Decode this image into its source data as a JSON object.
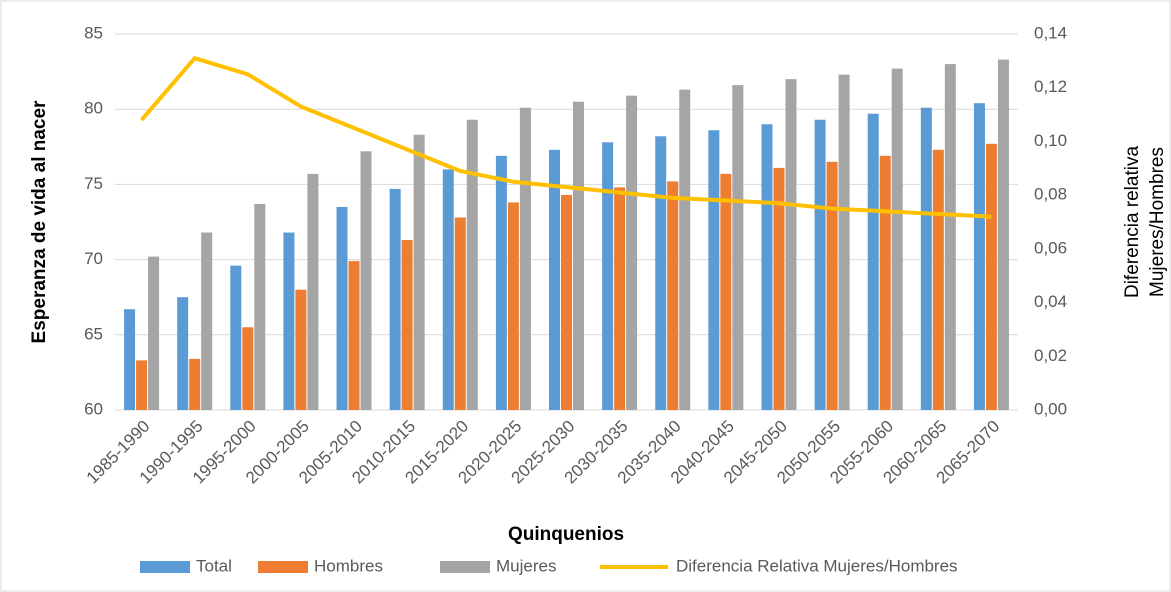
{
  "chart_data": {
    "type": "bar",
    "xlabel": "Quinquenios",
    "ylabel": "Esperanza de vida al nacer",
    "y2label": [
      "Diferencia relativa",
      "Mujeres/Hombres"
    ],
    "categories": [
      "1985-1990",
      "1990-1995",
      "1995-2000",
      "2000-2005",
      "2005-2010",
      "2010-2015",
      "2015-2020",
      "2020-2025",
      "2025-2030",
      "2030-2035",
      "2035-2040",
      "2040-2045",
      "2045-2050",
      "2050-2055",
      "2055-2060",
      "2060-2065",
      "2065-2070"
    ],
    "series": [
      {
        "name": "Total",
        "type": "bar",
        "color": "#5b9bd5",
        "values": [
          66.7,
          67.5,
          69.6,
          71.8,
          73.5,
          74.7,
          76.0,
          76.9,
          77.3,
          77.8,
          78.2,
          78.6,
          79.0,
          79.3,
          79.7,
          80.1,
          80.4
        ]
      },
      {
        "name": "Hombres",
        "type": "bar",
        "color": "#ed7d31",
        "values": [
          63.3,
          63.4,
          65.5,
          68.0,
          69.9,
          71.3,
          72.8,
          73.8,
          74.3,
          74.8,
          75.2,
          75.7,
          76.1,
          76.5,
          76.9,
          77.3,
          77.7
        ]
      },
      {
        "name": "Mujeres",
        "type": "bar",
        "color": "#a5a5a5",
        "values": [
          70.2,
          71.8,
          73.7,
          75.7,
          77.2,
          78.3,
          79.3,
          80.1,
          80.5,
          80.9,
          81.3,
          81.6,
          82.0,
          82.3,
          82.7,
          83.0,
          83.3
        ]
      },
      {
        "name": "Diferencia Relativa Mujeres/Hombres",
        "type": "line",
        "axis": "y2",
        "color": "#ffc000",
        "values": [
          0.108,
          0.131,
          0.125,
          0.113,
          0.105,
          0.097,
          0.089,
          0.085,
          0.083,
          0.081,
          0.079,
          0.078,
          0.077,
          0.075,
          0.074,
          0.073,
          0.072
        ]
      }
    ],
    "ylim": [
      60,
      85
    ],
    "yticks": [
      60,
      65,
      70,
      75,
      80,
      85
    ],
    "y2lim": [
      0,
      0.14
    ],
    "y2ticks": [
      {
        "value": 0,
        "label": "0,00"
      },
      {
        "value": 0.02,
        "label": "0,02"
      },
      {
        "value": 0.04,
        "label": "0,04"
      },
      {
        "value": 0.06,
        "label": "0,06"
      },
      {
        "value": 0.08,
        "label": "0,08"
      },
      {
        "value": 0.1,
        "label": "0,10"
      },
      {
        "value": 0.12,
        "label": "0,12"
      },
      {
        "value": 0.14,
        "label": "0,14"
      }
    ],
    "grid": true,
    "legend": "bottom"
  }
}
